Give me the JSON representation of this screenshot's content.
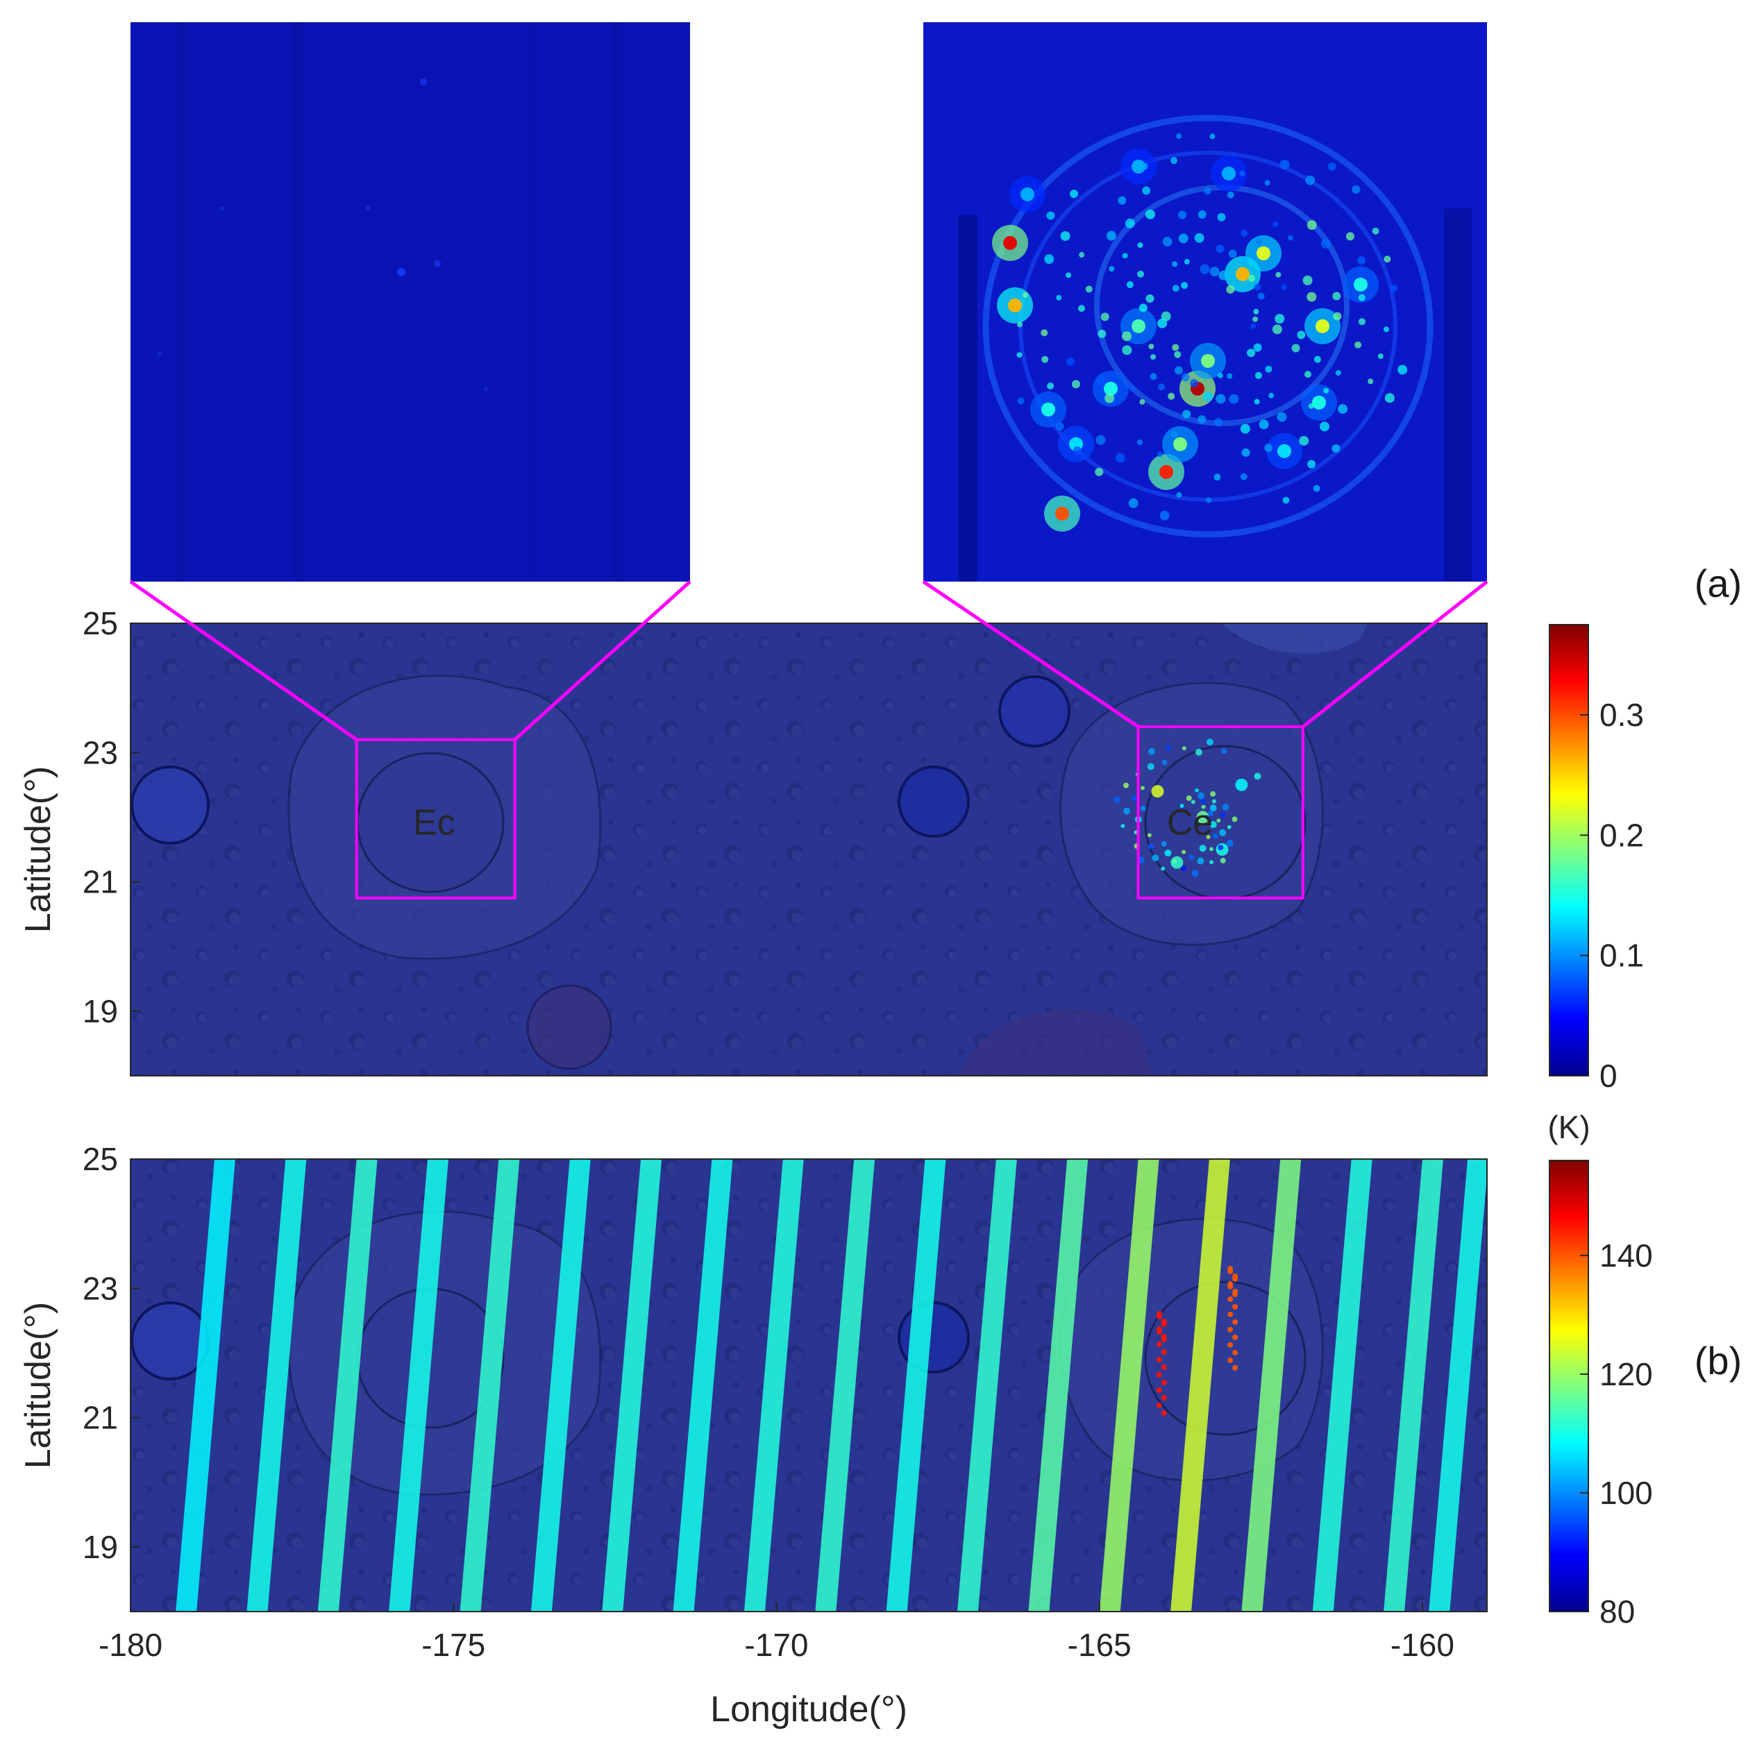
{
  "colors": {
    "map_base": "#2a3592",
    "inset_base": "#0a14b4",
    "zoom_box": "#ff00ff",
    "jet": [
      "#00008f",
      "#0000ff",
      "#0080ff",
      "#00ffff",
      "#80ff80",
      "#ffff00",
      "#ff8000",
      "#ff0000",
      "#800000"
    ]
  },
  "chart_data": [
    {
      "type": "heatmap",
      "panel_label": "(a)",
      "ylabel": "Latitude(°)",
      "xlim": [
        -180,
        -159
      ],
      "ylim": [
        18,
        25
      ],
      "yticks": [
        19,
        21,
        23,
        25
      ],
      "ytick_labels": [
        "19",
        "21",
        "23",
        "25"
      ],
      "colorbar": {
        "range": [
          0,
          0.375
        ],
        "ticks": [
          0,
          0.1,
          0.2,
          0.3
        ],
        "tick_labels": [
          "0",
          "0.1",
          "0.2",
          "0.3"
        ],
        "unit": ""
      },
      "crater_labels": [
        {
          "text": "Ec",
          "lon": -175.3,
          "lat": 22.0
        },
        {
          "text": "Ce",
          "lon": -163.6,
          "lat": 22.0
        }
      ],
      "zoom_boxes": [
        {
          "name": "left-inset",
          "lon": [
            -176.5,
            -174.05
          ],
          "lat": [
            20.75,
            23.2
          ]
        },
        {
          "name": "right-inset",
          "lon": [
            -164.4,
            -161.85
          ],
          "lat": [
            20.75,
            23.4
          ]
        }
      ],
      "hot_spots": [
        {
          "lon": -164.1,
          "lat": 22.4,
          "v": 0.22
        },
        {
          "lon": -163.4,
          "lat": 22.0,
          "v": 0.18
        },
        {
          "lon": -163.1,
          "lat": 21.5,
          "v": 0.15
        },
        {
          "lon": -163.8,
          "lat": 21.3,
          "v": 0.16
        },
        {
          "lon": -162.8,
          "lat": 22.5,
          "v": 0.14
        }
      ],
      "grid": false
    },
    {
      "type": "heatmap",
      "panel_label": "(b)",
      "xlabel": "Longitude(°)",
      "ylabel": "Latitude(°)",
      "xlim": [
        -180,
        -159
      ],
      "ylim": [
        18,
        25
      ],
      "xticks": [
        -180,
        -175,
        -170,
        -165,
        -160
      ],
      "xtick_labels": [
        "-180",
        "-175",
        "-170",
        "-165",
        "-160"
      ],
      "yticks": [
        19,
        21,
        23,
        25
      ],
      "ytick_labels": [
        "19",
        "21",
        "23",
        "25"
      ],
      "colorbar": {
        "range": [
          80,
          156
        ],
        "ticks": [
          80,
          100,
          120,
          140
        ],
        "tick_labels": [
          "80",
          "100",
          "120",
          "140"
        ],
        "unit": "(K)"
      },
      "swaths": [
        {
          "lon_bottom": -179.3,
          "lon_top": -178.7,
          "temp": 108
        },
        {
          "lon_bottom": -178.2,
          "lon_top": -177.6,
          "temp": 110
        },
        {
          "lon_bottom": -177.1,
          "lon_top": -176.5,
          "temp": 112
        },
        {
          "lon_bottom": -176.0,
          "lon_top": -175.4,
          "temp": 110
        },
        {
          "lon_bottom": -174.9,
          "lon_top": -174.3,
          "temp": 112
        },
        {
          "lon_bottom": -173.8,
          "lon_top": -173.2,
          "temp": 110
        },
        {
          "lon_bottom": -172.7,
          "lon_top": -172.1,
          "temp": 111
        },
        {
          "lon_bottom": -171.6,
          "lon_top": -171.0,
          "temp": 110
        },
        {
          "lon_bottom": -170.5,
          "lon_top": -169.9,
          "temp": 111
        },
        {
          "lon_bottom": -169.4,
          "lon_top": -168.8,
          "temp": 112
        },
        {
          "lon_bottom": -168.3,
          "lon_top": -167.7,
          "temp": 110
        },
        {
          "lon_bottom": -167.2,
          "lon_top": -166.6,
          "temp": 112
        },
        {
          "lon_bottom": -166.1,
          "lon_top": -165.5,
          "temp": 115
        },
        {
          "lon_bottom": -165.0,
          "lon_top": -164.4,
          "temp": 120
        },
        {
          "lon_bottom": -163.9,
          "lon_top": -163.3,
          "temp": 124
        },
        {
          "lon_bottom": -162.8,
          "lon_top": -162.2,
          "temp": 118
        },
        {
          "lon_bottom": -161.7,
          "lon_top": -161.1,
          "temp": 111
        },
        {
          "lon_bottom": -160.6,
          "lon_top": -160.0,
          "temp": 112
        },
        {
          "lon_bottom": -159.9,
          "lon_top": -159.3,
          "temp": 110
        }
      ],
      "hot_spots": [
        {
          "lon": -164.0,
          "lat": 21.8,
          "temp": 145
        },
        {
          "lon": -162.9,
          "lat": 22.5,
          "temp": 140
        }
      ],
      "grid": false
    }
  ]
}
